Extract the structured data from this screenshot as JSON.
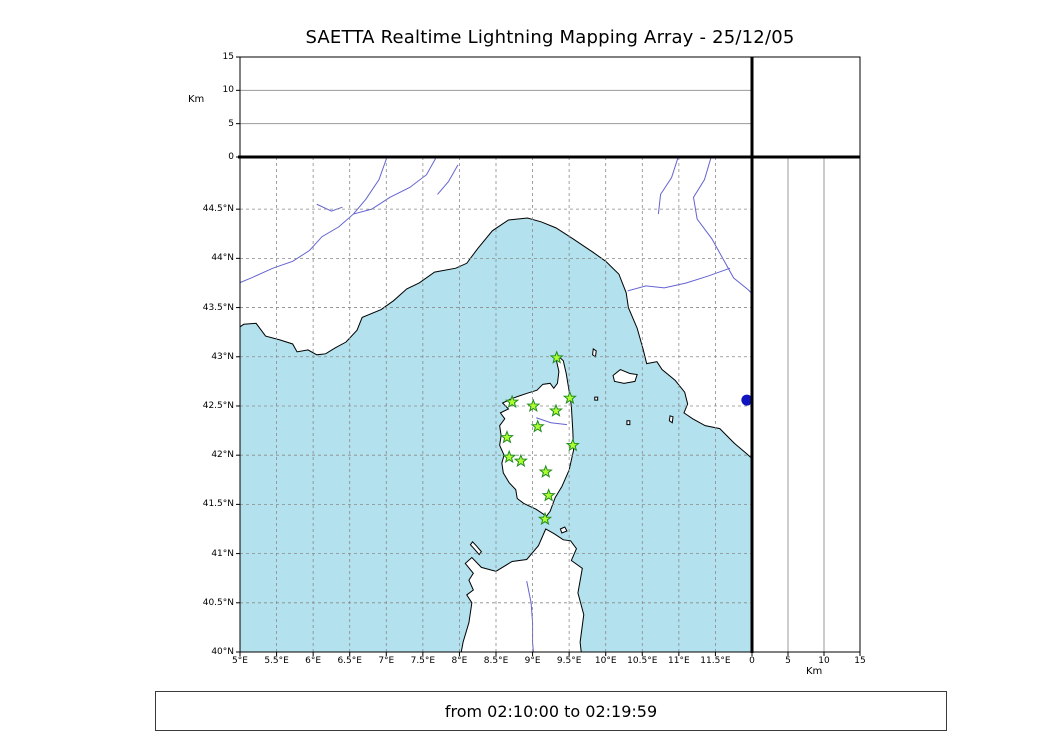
{
  "title": "SAETTA Realtime Lightning Mapping Array - 25/12/05",
  "footer": {
    "text": "from 02:10:00 to 02:19:59"
  },
  "colors": {
    "sea": "#b3e1ed",
    "land": "#ffffff",
    "coast": "#000000",
    "grid": "#8a8a8a",
    "panel_grid": "#999999",
    "river": "#6363d1",
    "station_fill": "#adff2f",
    "station_edge": "#228b22",
    "source": "#1015c0"
  },
  "chart_data": {
    "type": "scatter",
    "title": "SAETTA Realtime Lightning Mapping Array - 25/12/05",
    "time_window": {
      "from": "02:10:00",
      "to": "02:19:59"
    },
    "map": {
      "lon_range": [
        5,
        12
      ],
      "lat_range": [
        40,
        45.03
      ],
      "grid_step_deg": 0.5,
      "grid_style": "dashed",
      "lon_ticks": {
        "values": [
          5,
          5.5,
          6,
          6.5,
          7,
          7.5,
          8,
          8.5,
          9,
          9.5,
          10,
          10.5,
          11,
          11.5
        ],
        "labels": [
          "5°E",
          "5.5°E",
          "6°E",
          "6.5°E",
          "7°E",
          "7.5°E",
          "8°E",
          "8.5°E",
          "9°E",
          "9.5°E",
          "10°E",
          "10.5°E",
          "11°E",
          "11.5°E"
        ]
      },
      "lat_ticks": {
        "values": [
          40,
          40.5,
          41,
          41.5,
          42,
          42.5,
          43,
          43.5,
          44,
          44.5
        ],
        "labels": [
          "40°N",
          "40.5°N",
          "41°N",
          "41.5°N",
          "42°N",
          "42.5°N",
          "43°N",
          "43.5°N",
          "44°N",
          "44.5°N"
        ]
      }
    },
    "altitude_axis": {
      "label": "Km",
      "range": [
        0,
        15
      ],
      "ticks": {
        "values": [
          0,
          5,
          10,
          15
        ],
        "labels": [
          "0",
          "5",
          "10",
          "15"
        ]
      },
      "gridlines": [
        5,
        10
      ]
    },
    "stations": [
      {
        "lon": 9.33,
        "lat": 42.99
      },
      {
        "lon": 8.72,
        "lat": 42.54
      },
      {
        "lon": 9.01,
        "lat": 42.5
      },
      {
        "lon": 9.32,
        "lat": 42.45
      },
      {
        "lon": 9.51,
        "lat": 42.58
      },
      {
        "lon": 9.07,
        "lat": 42.29
      },
      {
        "lon": 8.65,
        "lat": 42.18
      },
      {
        "lon": 9.55,
        "lat": 42.1
      },
      {
        "lon": 8.68,
        "lat": 41.98
      },
      {
        "lon": 8.84,
        "lat": 41.94
      },
      {
        "lon": 9.18,
        "lat": 41.83
      },
      {
        "lon": 9.22,
        "lat": 41.59
      },
      {
        "lon": 9.17,
        "lat": 41.35
      }
    ],
    "sources": [
      {
        "lon": 11.93,
        "lat": 42.56
      }
    ]
  }
}
